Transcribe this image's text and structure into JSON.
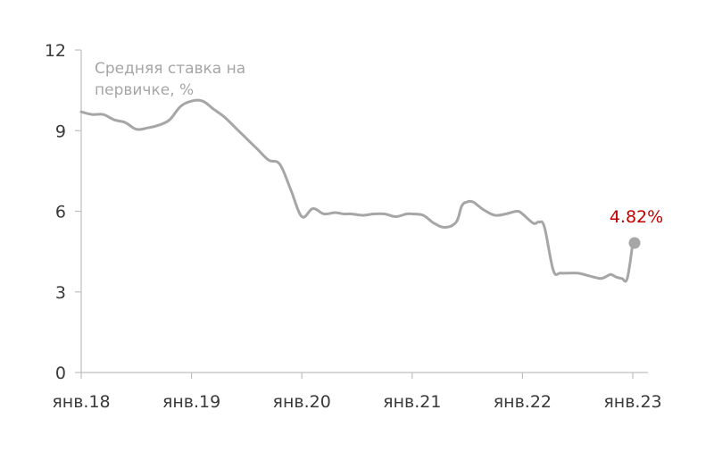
{
  "chart_data": {
    "type": "line",
    "title": "",
    "series_label": [
      "Средняя ставка на",
      "первичке, %"
    ],
    "xlabel": "",
    "ylabel": "",
    "ylim": [
      0,
      12
    ],
    "yticks": [
      0,
      3,
      6,
      9,
      12
    ],
    "xticks": [
      {
        "label": "янв.18",
        "x": 2018.0
      },
      {
        "label": "янв.19",
        "x": 2019.0
      },
      {
        "label": "янв.20",
        "x": 2020.0
      },
      {
        "label": "янв.21",
        "x": 2021.0
      },
      {
        "label": "янв.22",
        "x": 2022.0
      },
      {
        "label": "янв.23",
        "x": 2023.0
      }
    ],
    "xlim": [
      2018.0,
      2023.0
    ],
    "grid": false,
    "series": [
      {
        "color": "#a6a6a6",
        "x": [
          2018.0,
          2018.1,
          2018.2,
          2018.3,
          2018.4,
          2018.5,
          2018.6,
          2018.7,
          2018.8,
          2018.9,
          2019.0,
          2019.1,
          2019.2,
          2019.3,
          2019.4,
          2019.5,
          2019.6,
          2019.7,
          2019.8,
          2019.9,
          2020.0,
          2020.1,
          2020.2,
          2020.3,
          2020.38,
          2020.45,
          2020.55,
          2020.65,
          2020.75,
          2020.85,
          2020.95,
          2021.0,
          2021.1,
          2021.2,
          2021.3,
          2021.4,
          2021.45,
          2021.5,
          2021.55,
          2021.6,
          2021.65,
          2021.75,
          2021.85,
          2021.95,
          2022.0,
          2022.1,
          2022.15,
          2022.2,
          2022.28,
          2022.35,
          2022.5,
          2022.6,
          2022.7,
          2022.75,
          2022.8,
          2022.85,
          2022.9,
          2022.95,
          2023.0
        ],
        "values": [
          9.7,
          9.6,
          9.6,
          9.4,
          9.3,
          9.05,
          9.1,
          9.2,
          9.4,
          9.9,
          10.1,
          10.1,
          9.8,
          9.5,
          9.1,
          8.7,
          8.3,
          7.9,
          7.75,
          6.8,
          5.8,
          6.1,
          5.9,
          5.95,
          5.9,
          5.9,
          5.85,
          5.9,
          5.9,
          5.8,
          5.9,
          5.9,
          5.85,
          5.55,
          5.4,
          5.6,
          6.2,
          6.35,
          6.35,
          6.2,
          6.05,
          5.85,
          5.9,
          6.0,
          5.9,
          5.55,
          5.6,
          5.4,
          3.8,
          3.7,
          3.7,
          3.6,
          3.5,
          3.55,
          3.65,
          3.55,
          3.5,
          3.5,
          4.82
        ]
      }
    ],
    "end_point": {
      "x": 2023.0,
      "value": 4.82,
      "label": "4.82%",
      "label_color": "#c00000",
      "marker_color": "#a6a6a6"
    }
  }
}
